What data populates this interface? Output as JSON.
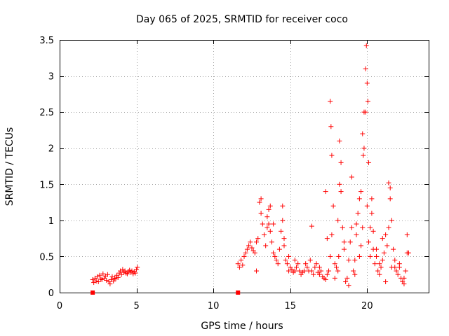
{
  "chart_data": {
    "type": "scatter",
    "title": "Day 065 of 2025, SRMTID for receiver coco",
    "xlabel": "GPS time / hours",
    "ylabel": "SRMTID / TECUs",
    "xlim": [
      0,
      24
    ],
    "ylim": [
      0,
      3.5
    ],
    "x_ticks": [
      0,
      5,
      10,
      15,
      20
    ],
    "x_tick_labels": [
      "0",
      "5",
      "10",
      "15",
      "20"
    ],
    "y_ticks": [
      0,
      0.5,
      1,
      1.5,
      2,
      2.5,
      3,
      3.5
    ],
    "y_tick_labels": [
      "0",
      "0.5",
      "1",
      "1.5",
      "2",
      "2.5",
      "3",
      "3.5"
    ],
    "grid": true,
    "marker": "+",
    "color": "#ff0000",
    "series": [
      {
        "name": "SRMTID",
        "x": [
          2.15,
          2.22,
          2.3,
          2.38,
          2.45,
          2.52,
          2.6,
          2.68,
          2.75,
          2.82,
          2.9,
          2.98,
          3.05,
          3.12,
          3.2,
          3.28,
          3.35,
          3.42,
          3.5,
          3.58,
          3.65,
          3.72,
          3.8,
          3.88,
          3.95,
          4.02,
          4.1,
          4.18,
          4.25,
          4.32,
          4.4,
          4.48,
          4.55,
          4.62,
          4.7,
          4.78,
          4.85,
          4.92,
          5.0,
          5.05,
          11.6,
          11.7,
          11.8,
          11.9,
          12.0,
          12.1,
          12.2,
          12.3,
          12.4,
          12.5,
          12.6,
          12.7,
          12.8,
          12.9,
          13.0,
          13.1,
          13.2,
          13.3,
          13.4,
          13.5,
          13.6,
          13.7,
          13.8,
          13.9,
          14.0,
          14.1,
          14.2,
          14.3,
          14.4,
          14.5,
          14.6,
          14.7,
          14.8,
          14.9,
          15.0,
          15.1,
          15.2,
          15.3,
          15.4,
          15.5,
          15.6,
          15.7,
          15.8,
          15.9,
          16.0,
          16.1,
          16.2,
          16.3,
          16.4,
          16.5,
          16.6,
          16.7,
          16.8,
          16.9,
          17.0,
          17.1,
          17.2,
          17.3,
          17.4,
          17.5,
          17.6,
          17.7,
          17.8,
          17.9,
          18.0,
          18.1,
          18.2,
          18.3,
          18.4,
          18.5,
          18.6,
          18.7,
          18.8,
          18.9,
          19.0,
          19.1,
          19.2,
          19.3,
          19.4,
          19.5,
          19.6,
          19.7,
          19.8,
          19.9,
          20.0,
          20.1,
          20.2,
          20.3,
          20.4,
          20.5,
          20.6,
          20.7,
          20.8,
          20.9,
          21.0,
          21.1,
          21.2,
          21.3,
          21.4,
          21.5,
          21.6,
          21.7,
          21.8,
          21.9,
          22.0,
          22.1,
          22.2,
          22.3,
          22.4,
          22.5,
          22.6,
          22.7,
          17.6,
          17.65,
          17.7,
          18.2,
          18.3,
          19.8,
          19.9,
          19.95,
          20.0,
          20.05,
          19.7,
          19.75,
          20.1,
          21.4,
          21.5,
          13.1,
          13.5,
          13.6,
          13.7,
          14.5,
          14.6,
          17.3,
          17.4,
          18.1,
          18.15,
          18.5,
          19.0,
          19.3,
          19.5,
          20.3,
          20.4,
          20.6,
          21.0,
          21.8,
          22.1,
          22.6,
          16.4,
          15.3,
          12.8,
          13.9,
          14.9,
          16.9,
          17.9,
          18.8,
          19.2,
          19.6,
          20.2,
          20.8,
          21.2,
          21.6,
          22.4
        ],
        "y": [
          0.18,
          0.14,
          0.2,
          0.16,
          0.22,
          0.15,
          0.24,
          0.19,
          0.18,
          0.26,
          0.2,
          0.23,
          0.17,
          0.25,
          0.15,
          0.12,
          0.18,
          0.22,
          0.16,
          0.2,
          0.19,
          0.24,
          0.21,
          0.27,
          0.3,
          0.25,
          0.32,
          0.28,
          0.3,
          0.27,
          0.26,
          0.29,
          0.31,
          0.28,
          0.3,
          0.26,
          0.29,
          0.27,
          0.32,
          0.35,
          0.4,
          0.35,
          0.45,
          0.38,
          0.5,
          0.55,
          0.6,
          0.65,
          0.7,
          0.62,
          0.58,
          0.55,
          0.7,
          0.75,
          1.25,
          1.1,
          0.95,
          0.8,
          0.65,
          0.9,
          1.15,
          1.2,
          0.7,
          0.55,
          0.5,
          0.45,
          0.4,
          0.6,
          0.85,
          1.0,
          0.75,
          0.45,
          0.4,
          0.3,
          0.35,
          0.32,
          0.28,
          0.3,
          0.35,
          0.4,
          0.3,
          0.25,
          0.28,
          0.3,
          0.4,
          0.35,
          0.3,
          0.45,
          0.3,
          0.25,
          0.35,
          0.4,
          0.28,
          0.25,
          0.3,
          0.22,
          0.2,
          0.18,
          0.25,
          0.3,
          0.5,
          0.8,
          1.2,
          0.4,
          0.35,
          0.3,
          1.5,
          1.8,
          0.9,
          0.6,
          0.15,
          0.2,
          0.45,
          0.7,
          0.9,
          0.3,
          0.25,
          0.8,
          1.1,
          0.5,
          1.4,
          0.9,
          2.0,
          2.5,
          1.2,
          0.7,
          0.9,
          1.3,
          0.6,
          0.4,
          0.5,
          0.3,
          0.25,
          0.35,
          0.45,
          0.55,
          0.8,
          0.65,
          0.9,
          1.3,
          1.0,
          0.6,
          0.35,
          0.3,
          0.25,
          0.4,
          0.2,
          0.15,
          0.12,
          0.3,
          0.8,
          0.55,
          2.65,
          2.3,
          1.9,
          2.1,
          1.4,
          2.5,
          3.1,
          3.42,
          2.9,
          2.65,
          2.2,
          1.9,
          1.8,
          1.52,
          1.45,
          1.3,
          1.05,
          0.95,
          0.85,
          1.2,
          0.65,
          1.4,
          0.75,
          1.0,
          0.5,
          0.7,
          1.6,
          0.95,
          1.3,
          1.1,
          0.85,
          0.6,
          0.75,
          0.45,
          0.35,
          0.55,
          0.92,
          0.45,
          0.3,
          0.95,
          0.5,
          0.35,
          0.2,
          0.1,
          0.45,
          0.65,
          0.5,
          0.4,
          0.15,
          0.35,
          0.2
        ]
      }
    ],
    "zero_markers": {
      "x": [
        2.15,
        11.6
      ],
      "y": [
        0,
        0
      ]
    }
  }
}
